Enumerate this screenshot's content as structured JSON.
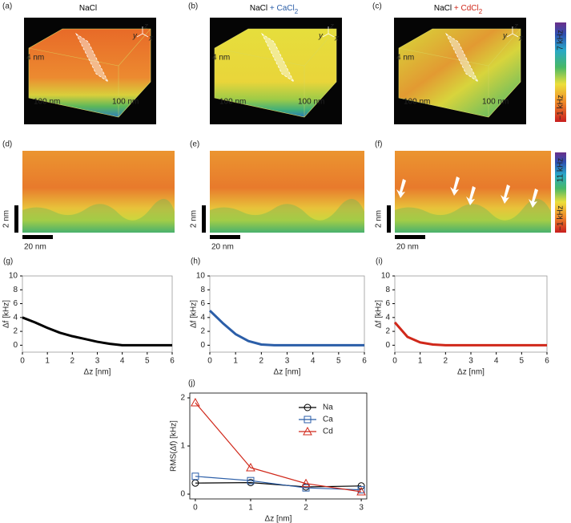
{
  "images": [
    {
      "label": "(a)",
      "title": [
        "NaCl"
      ],
      "title_colors": [
        "#000000"
      ],
      "annotations": [
        "4 nm",
        "100 nm",
        "100 nm"
      ],
      "axes": [
        "y",
        "z",
        "x"
      ]
    },
    {
      "label": "(b)",
      "title": [
        "NaCl",
        " + CaCl",
        "2"
      ],
      "title_colors": [
        "#000000",
        "#2b5ea8",
        "#2b5ea8"
      ],
      "annotations": [
        "4 nm",
        "100 nm",
        "100 nm"
      ],
      "axes": [
        "y",
        "z",
        "x"
      ]
    },
    {
      "label": "(c)",
      "title": [
        "NaCl",
        " + CdCl",
        "2"
      ],
      "title_colors": [
        "#000000",
        "#d0281a",
        "#d0281a"
      ],
      "annotations": [
        "4 nm",
        "100 nm",
        "100 nm"
      ],
      "axes": [
        "y",
        "z",
        "x"
      ]
    }
  ],
  "maps": [
    {
      "label": "(d)",
      "scale": [
        "2 nm",
        "20 nm"
      ]
    },
    {
      "label": "(e)",
      "scale": [
        "2 nm",
        "20 nm"
      ]
    },
    {
      "label": "(f)",
      "scale": [
        "2 nm",
        "20 nm"
      ]
    }
  ],
  "colorbars": [
    {
      "max": "7 kHz",
      "min": "−1 kHz"
    },
    {
      "max": "11 kHz",
      "min": "−1 kHz"
    }
  ],
  "chart_data": [
    {
      "type": "line",
      "label": "(g)",
      "x_label": "Δz [nm]",
      "y_label": "Δf [kHz]",
      "color": "#000000",
      "x": [
        0,
        0.5,
        1,
        1.5,
        2,
        2.5,
        3,
        3.5,
        4,
        4.5,
        5,
        5.5,
        6
      ],
      "values": [
        4,
        3.3,
        2.5,
        1.8,
        1.3,
        0.9,
        0.5,
        0.2,
        0,
        0,
        0,
        0,
        0
      ],
      "xlim": [
        0,
        6
      ],
      "ylim": [
        -1,
        10
      ],
      "xticks": [
        0,
        1,
        2,
        3,
        4,
        5,
        6
      ],
      "yticks": [
        0,
        2,
        4,
        6,
        8,
        10
      ]
    },
    {
      "type": "line",
      "label": "(h)",
      "x_label": "Δz [nm]",
      "y_label": "Δf [kHz]",
      "color": "#2b5ea8",
      "x": [
        0,
        0.5,
        1,
        1.5,
        2,
        2.5,
        3,
        3.5,
        4,
        4.5,
        5,
        5.5,
        6
      ],
      "values": [
        5,
        3.2,
        1.6,
        0.6,
        0.1,
        0,
        0,
        0,
        0,
        0,
        0,
        0,
        0
      ],
      "xlim": [
        0,
        6
      ],
      "ylim": [
        -1,
        10
      ],
      "xticks": [
        0,
        1,
        2,
        3,
        4,
        5,
        6
      ],
      "yticks": [
        0,
        2,
        4,
        6,
        8,
        10
      ]
    },
    {
      "type": "line",
      "label": "(i)",
      "x_label": "Δz [nm]",
      "y_label": "Δf [kHz]",
      "color": "#d0281a",
      "x": [
        0,
        0.5,
        1,
        1.5,
        2,
        2.5,
        3,
        3.5,
        4,
        4.5,
        5,
        5.5,
        6
      ],
      "values": [
        3.3,
        1.2,
        0.4,
        0.1,
        0,
        0,
        0,
        0,
        0,
        0,
        0,
        0,
        0
      ],
      "xlim": [
        0,
        6
      ],
      "ylim": [
        -1,
        10
      ],
      "xticks": [
        0,
        1,
        2,
        3,
        4,
        5,
        6
      ],
      "yticks": [
        0,
        2,
        4,
        6,
        8,
        10
      ]
    },
    {
      "type": "line_markers",
      "label": "(j)",
      "x_label": "Δz [nm]",
      "y_label": "RMS(Δf) [kHz]",
      "x": [
        0,
        1,
        2,
        3
      ],
      "series": [
        {
          "name": "Na",
          "color": "#000000",
          "marker": "circle",
          "values": [
            0.23,
            0.24,
            0.15,
            0.17
          ]
        },
        {
          "name": "Ca",
          "color": "#2b5ea8",
          "marker": "square",
          "values": [
            0.37,
            0.28,
            0.13,
            0.09
          ]
        },
        {
          "name": "Cd",
          "color": "#d0281a",
          "marker": "triangle",
          "values": [
            1.9,
            0.55,
            0.22,
            0.05
          ]
        }
      ],
      "legend": "upper right",
      "xlim": [
        -0.1,
        3.1
      ],
      "ylim": [
        -0.1,
        2.1
      ],
      "xticks": [
        0,
        1,
        2,
        3
      ],
      "yticks": [
        0,
        1,
        2
      ]
    }
  ]
}
